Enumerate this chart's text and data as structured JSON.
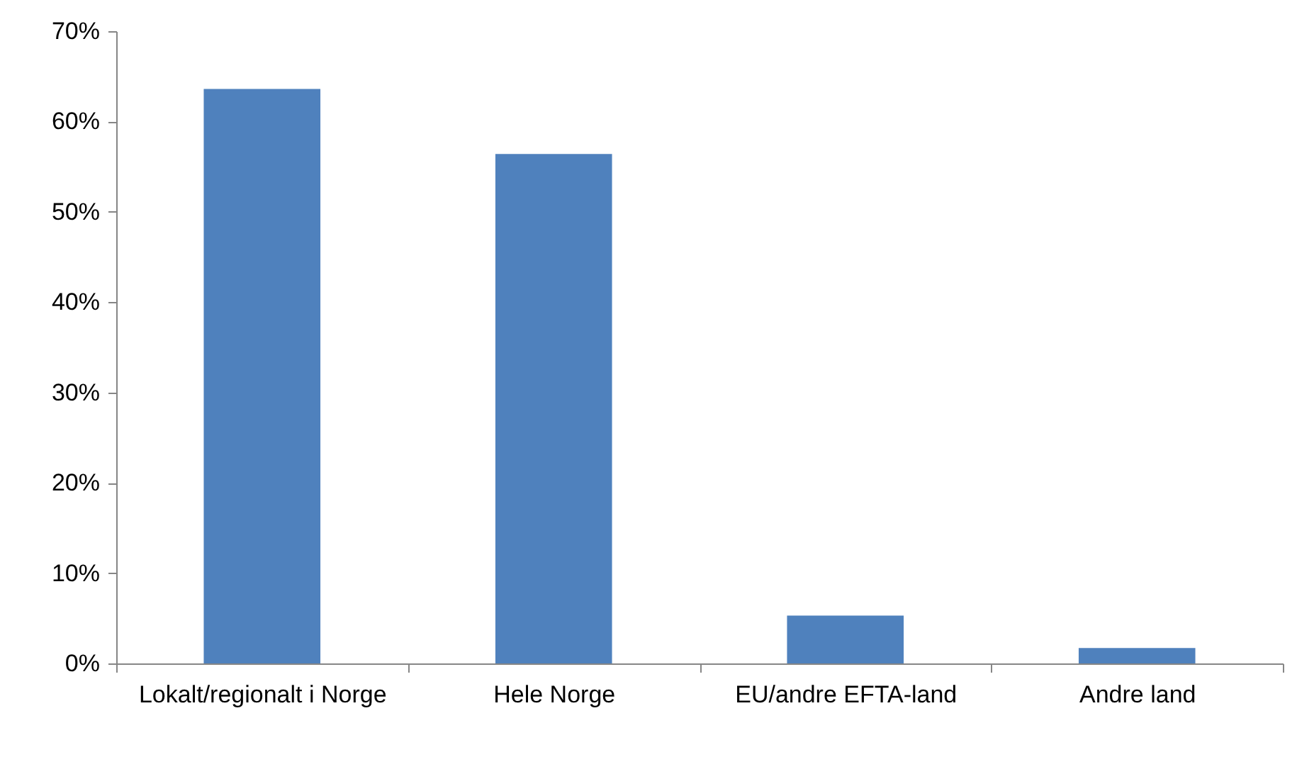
{
  "chart_data": {
    "type": "bar",
    "categories": [
      "Lokalt/regionalt i Norge",
      "Hele Norge",
      "EU/andre EFTA-land",
      "Andre land"
    ],
    "values": [
      63.6,
      56.4,
      5.3,
      1.7
    ],
    "color": "#4f81bd",
    "ylim": [
      0,
      70
    ],
    "yticks": [
      {
        "value": 0,
        "label": "0%"
      },
      {
        "value": 10,
        "label": "10%"
      },
      {
        "value": 20,
        "label": "20%"
      },
      {
        "value": 30,
        "label": "30%"
      },
      {
        "value": 40,
        "label": "40%"
      },
      {
        "value": 50,
        "label": "50%"
      },
      {
        "value": 60,
        "label": "60%"
      },
      {
        "value": 70,
        "label": "70%"
      }
    ],
    "grid": false
  }
}
